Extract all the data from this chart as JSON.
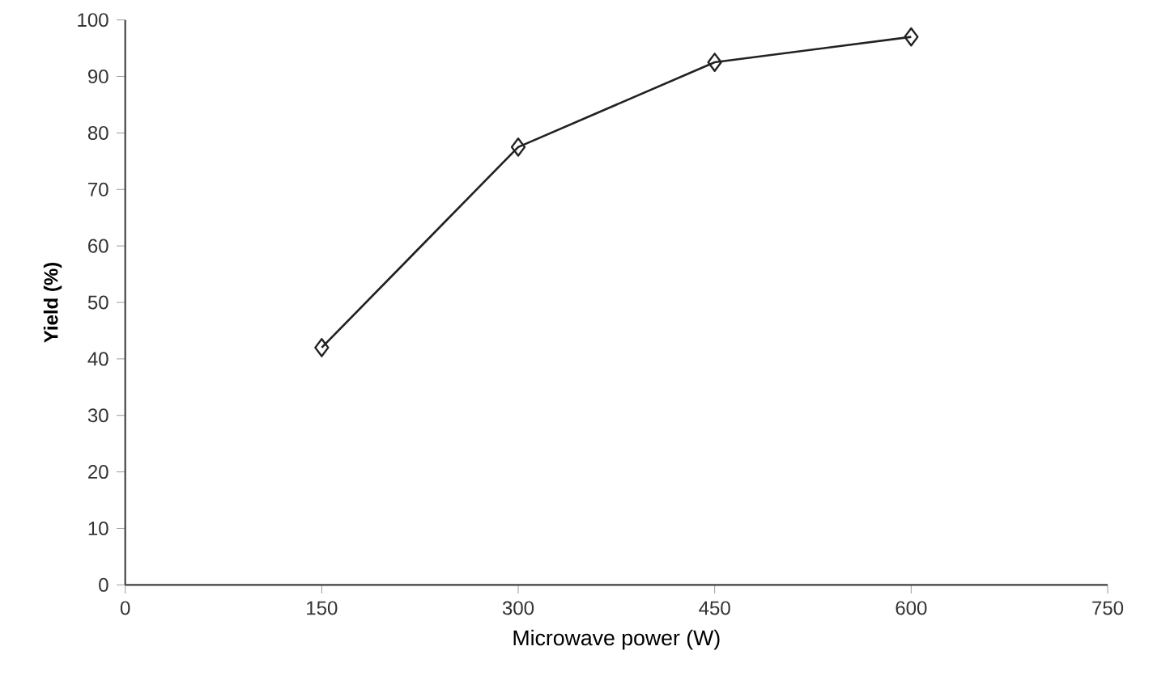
{
  "chart_data": {
    "type": "line",
    "xlabel": "Microwave power (W)",
    "ylabel": "Yield (%)",
    "x": [
      150,
      300,
      450,
      600
    ],
    "series": [
      {
        "color": "#222222",
        "values": [
          42,
          77.5,
          92.5,
          97
        ]
      }
    ],
    "xlim": [
      0,
      750
    ],
    "xticks": [
      0,
      150,
      300,
      450,
      600,
      750
    ],
    "ylim": [
      0,
      100
    ],
    "yticks": [
      0,
      10,
      20,
      30,
      40,
      50,
      60,
      70,
      80,
      90,
      100
    ],
    "marker": "diamond",
    "line_style": "solid"
  }
}
